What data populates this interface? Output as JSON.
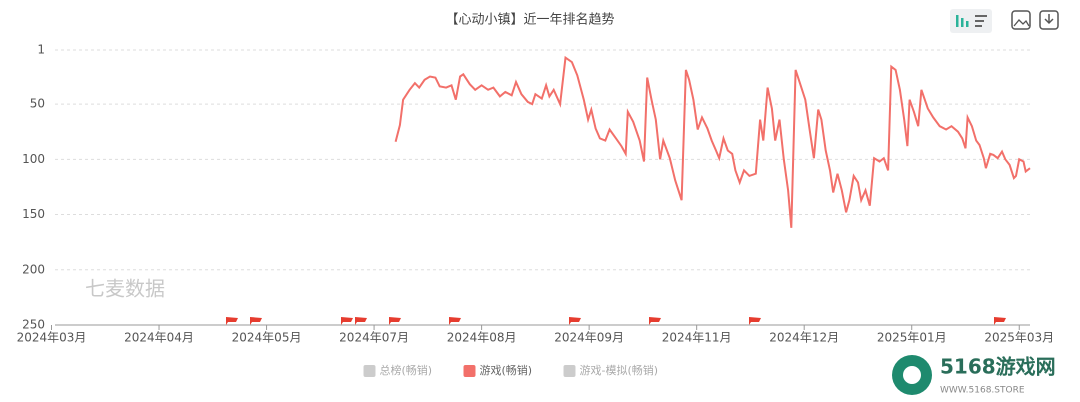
{
  "chart_data": {
    "type": "line",
    "title": "【心动小镇】近一年排名趋势",
    "watermark": "七麦数据",
    "logo_text": "5168游戏网",
    "logo_url": "WWW.5168.STORE",
    "y_inverted": true,
    "grid": true,
    "ylim": [
      1,
      250
    ],
    "yticks": [
      1,
      50,
      100,
      150,
      200,
      250
    ],
    "xlim": [
      -0.2,
      9.1
    ],
    "xticks": [
      {
        "value": 0,
        "label": "2024年03月"
      },
      {
        "value": 1,
        "label": "2024年04月"
      },
      {
        "value": 2,
        "label": "2024年05月"
      },
      {
        "value": 3,
        "label": "2024年07月"
      },
      {
        "value": 4,
        "label": "2024年08月"
      },
      {
        "value": 5,
        "label": "2024年09月"
      },
      {
        "value": 6,
        "label": "2024年11月"
      },
      {
        "value": 7,
        "label": "2024年12月"
      },
      {
        "value": 8,
        "label": "2025年01月"
      },
      {
        "value": 9,
        "label": "2025年03月"
      }
    ],
    "series": [
      {
        "name": "总榜(畅销)",
        "color": "#cccccc",
        "x": [],
        "values": []
      },
      {
        "name": "游戏(畅销)",
        "color": "#f2706a",
        "x": [
          3.2,
          3.24,
          3.27,
          3.33,
          3.38,
          3.42,
          3.47,
          3.52,
          3.57,
          3.61,
          3.67,
          3.72,
          3.76,
          3.8,
          3.83,
          3.89,
          3.94,
          4,
          4.06,
          4.11,
          4.17,
          4.22,
          4.28,
          4.32,
          4.37,
          4.43,
          4.47,
          4.5,
          4.56,
          4.6,
          4.63,
          4.67,
          4.73,
          4.78,
          4.84,
          4.89,
          4.95,
          4.99,
          5.02,
          5.06,
          5.1,
          5.15,
          5.19,
          5.25,
          5.3,
          5.34,
          5.36,
          5.41,
          5.47,
          5.51,
          5.54,
          5.58,
          5.62,
          5.66,
          5.69,
          5.75,
          5.8,
          5.86,
          5.9,
          5.93,
          5.97,
          6.01,
          6.05,
          6.1,
          6.14,
          6.18,
          6.21,
          6.25,
          6.29,
          6.33,
          6.36,
          6.4,
          6.44,
          6.49,
          6.55,
          6.59,
          6.62,
          6.66,
          6.7,
          6.73,
          6.77,
          6.81,
          6.85,
          6.88,
          6.92,
          6.96,
          7.01,
          7.05,
          7.09,
          7.13,
          7.16,
          7.2,
          7.24,
          7.27,
          7.31,
          7.35,
          7.39,
          7.42,
          7.46,
          7.5,
          7.53,
          7.57,
          7.61,
          7.65,
          7.7,
          7.74,
          7.78,
          7.81,
          7.85,
          7.89,
          7.93,
          7.96,
          7.98,
          8.02,
          8.06,
          8.09,
          8.15,
          8.2,
          8.26,
          8.32,
          8.37,
          8.43,
          8.47,
          8.5,
          8.52,
          8.56,
          8.6,
          8.63,
          8.67,
          8.69,
          8.73,
          8.76,
          8.8,
          8.84,
          8.87,
          8.91,
          8.95,
          8.97,
          9,
          9.04,
          9.06,
          9.1
        ],
        "values": [
          84,
          69,
          46,
          37,
          31,
          35,
          28,
          25,
          26,
          34,
          35,
          33,
          46,
          25,
          23,
          32,
          37,
          33,
          37,
          35,
          43,
          39,
          42,
          30,
          41,
          48,
          50,
          41,
          45,
          33,
          43,
          37,
          50,
          8,
          12,
          24,
          46,
          64,
          55,
          72,
          81,
          83,
          73,
          81,
          88,
          95,
          57,
          66,
          83,
          102,
          26,
          46,
          64,
          100,
          83,
          99,
          119,
          137,
          19,
          28,
          46,
          73,
          62,
          72,
          83,
          92,
          99,
          81,
          92,
          95,
          110,
          121,
          110,
          115,
          113,
          64,
          83,
          35,
          54,
          83,
          64,
          100,
          128,
          162,
          19,
          31,
          46,
          73,
          99,
          55,
          64,
          92,
          110,
          130,
          113,
          128,
          148,
          137,
          115,
          121,
          137,
          128,
          142,
          99,
          102,
          99,
          110,
          16,
          19,
          37,
          64,
          88,
          46,
          57,
          70,
          37,
          54,
          62,
          70,
          73,
          70,
          75,
          81,
          90,
          62,
          70,
          83,
          87,
          99,
          108,
          95,
          96,
          99,
          93,
          100,
          105,
          117,
          115,
          100,
          102,
          111,
          108
        ]
      },
      {
        "name": "游戏-模拟(畅销)",
        "color": "#cccccc",
        "x": [],
        "values": []
      }
    ]
  }
}
